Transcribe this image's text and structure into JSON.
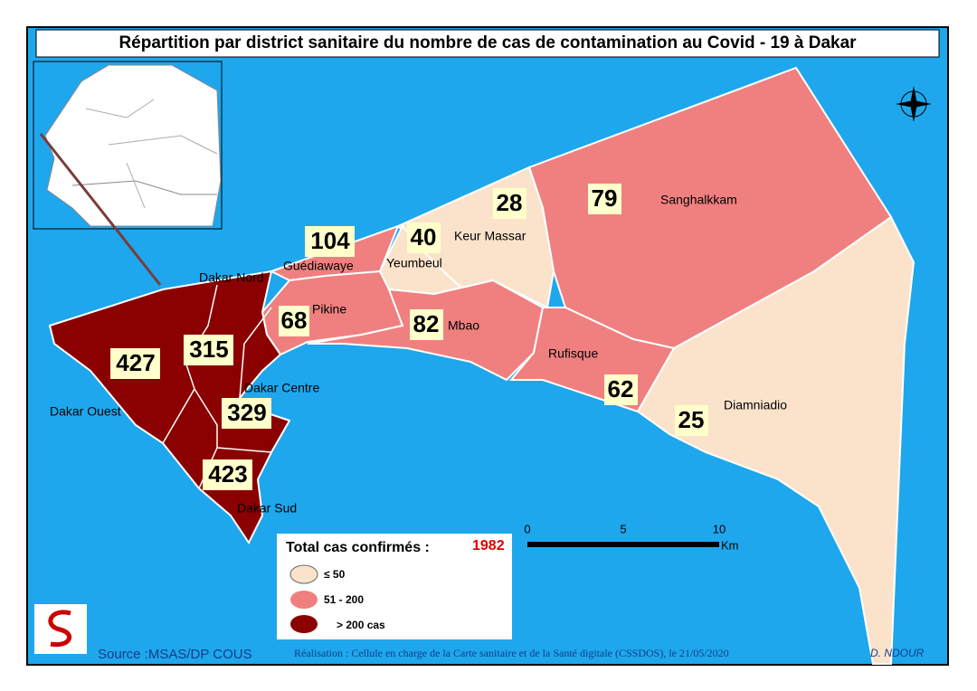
{
  "title": "Répartition par district sanitaire du nombre de cas de contamination au Covid - 19 à Dakar",
  "districts": [
    {
      "name": "Dakar Ouest",
      "cases": 427
    },
    {
      "name": "Dakar Nord",
      "cases": 315
    },
    {
      "name": "Dakar Centre",
      "cases": 329
    },
    {
      "name": "Dakar Sud",
      "cases": 423
    },
    {
      "name": "Guédiawaye",
      "cases": 104
    },
    {
      "name": "Pikine",
      "cases": 68
    },
    {
      "name": "Yeumbeul",
      "cases": 40
    },
    {
      "name": "Keur Massar",
      "cases": 28
    },
    {
      "name": "Mbao",
      "cases": 82
    },
    {
      "name": "Sanghalkkam",
      "cases": 79
    },
    {
      "name": "Rufisque",
      "cases": 62
    },
    {
      "name": "Diamniadio",
      "cases": 25
    }
  ],
  "total": {
    "label": "Total cas confirmés :",
    "value": 1982
  },
  "legend": [
    {
      "label": "≤ 50",
      "color": "#fbe3cb"
    },
    {
      "label": "51 - 200",
      "color": "#f08080"
    },
    {
      "label": "> 200 cas",
      "color": "#8b0000"
    }
  ],
  "scale": {
    "ticks": [
      0,
      5,
      10
    ],
    "unit": "Km"
  },
  "source": "Source :MSAS/DP COUS",
  "credit": "Réalisation : Cellule en charge  de la Carte sanitaire et de la Santé digitale  (CSSDOS), le 21/05/2020",
  "author": "D. NDOUR"
}
